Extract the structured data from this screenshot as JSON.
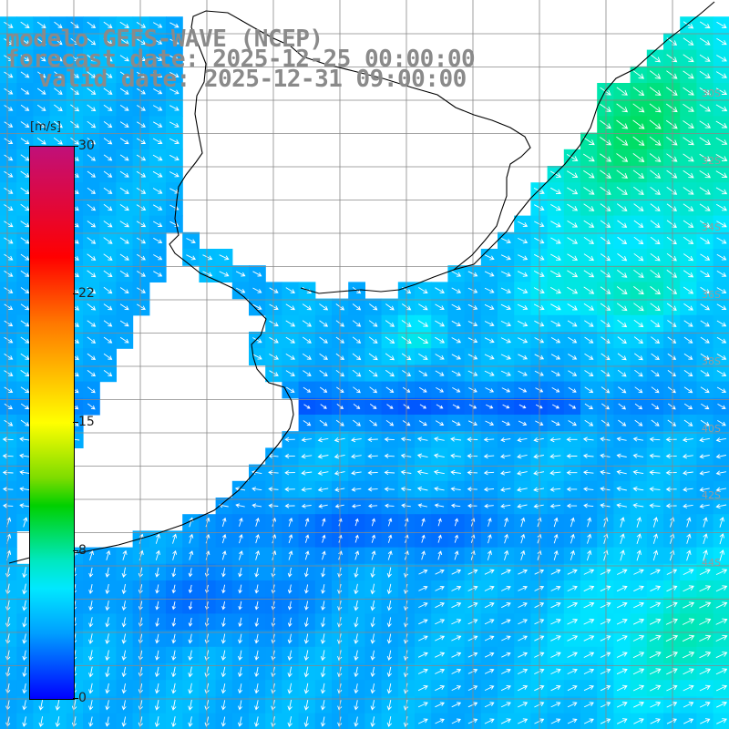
{
  "titles": {
    "line1": "modelo GEFS-WAVE (NCEP)",
    "line2": "forecast date: 2025-12-25 00:00:00",
    "line3": "valid date: 2025-12-31 09:00:00"
  },
  "colorbar": {
    "unit": "[m/s]",
    "min": 0,
    "max": 30,
    "ticks": [
      "30",
      "22",
      "15",
      "8",
      "0"
    ],
    "tick_values": [
      30,
      22,
      15,
      8,
      0
    ]
  },
  "lat_labels": [
    "30S",
    "32S",
    "34S",
    "36S",
    "38S",
    "40S",
    "42S",
    "44S"
  ],
  "colors": {
    "grid": "#888888",
    "coast": "#000000",
    "arrow": "#ffffff",
    "title": "#8a8a8a"
  }
}
